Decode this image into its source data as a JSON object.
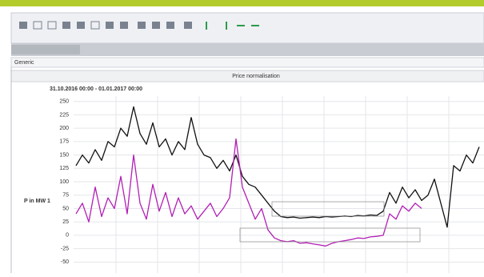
{
  "tab": "Generic",
  "chart_data": {
    "type": "line",
    "title": "Price normalisation",
    "subtitle": "31.10.2016 00:00 - 01.01.2017 00:00",
    "y_label": "P in MW 1",
    "ylim": [
      -60,
      260
    ],
    "yticks": [
      250,
      225,
      200,
      175,
      150,
      125,
      100,
      75,
      50,
      25,
      0,
      -25,
      -50
    ],
    "grid": true,
    "series": [
      {
        "color": "#111111",
        "values": [
          130,
          150,
          135,
          160,
          140,
          175,
          165,
          200,
          185,
          240,
          190,
          170,
          210,
          165,
          180,
          150,
          175,
          160,
          220,
          170,
          150,
          145,
          125,
          140,
          120,
          150,
          110,
          95,
          90,
          75,
          60,
          45,
          35,
          33,
          34,
          32,
          33,
          34,
          33,
          35,
          34,
          35,
          36,
          35,
          37,
          36,
          38,
          37,
          45,
          80,
          60,
          90,
          70,
          85,
          65,
          75,
          105,
          60,
          15,
          130,
          120,
          150,
          135,
          165
        ]
      },
      {
        "color": "#b21fb5",
        "values": [
          40,
          60,
          25,
          90,
          35,
          70,
          50,
          110,
          40,
          150,
          60,
          30,
          95,
          45,
          80,
          35,
          70,
          40,
          55,
          30,
          45,
          60,
          35,
          50,
          70,
          180,
          90,
          60,
          30,
          50,
          10,
          -5,
          -10,
          -12,
          -10,
          -15,
          -14,
          -16,
          -18,
          -20,
          -15,
          -12,
          -10,
          -8,
          -5,
          -6,
          -3,
          -2,
          0,
          40,
          30,
          55,
          45,
          60,
          50,
          null,
          null,
          null,
          null,
          null,
          null,
          null,
          null,
          null
        ]
      }
    ]
  }
}
